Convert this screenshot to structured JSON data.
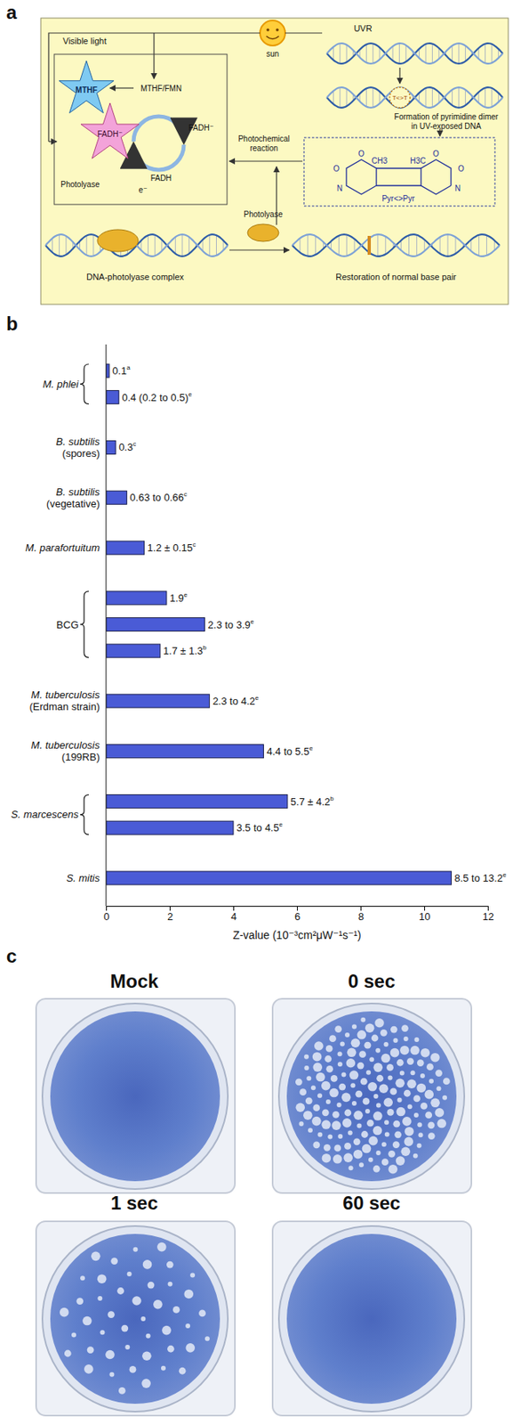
{
  "panel_labels": [
    "a",
    "b",
    "c"
  ],
  "diagram": {
    "sun": "sun",
    "visible_light": "Visible light",
    "uvr": "UVR",
    "dimer_formation": "Formation of pyrimidine dimer in UV-exposed DNA",
    "dimer": "T<>T",
    "mthf": "MTHF",
    "mthf_fmn": "MTHF/FMN",
    "fadh_star": "FADH⁻",
    "fadh_minus": "FADH⁻",
    "fadh": "FADH",
    "electron": "e⁻",
    "photolyase_inner": "Photolyase",
    "photochemical": "Photochemical reaction",
    "structure": {
      "ch3": "CH3",
      "h3c": "H3C",
      "o": "O",
      "n": "N",
      "pyr": "Pyr<>Pyr"
    },
    "photolyase": "Photolyase",
    "complex": "DNA-photolyase complex",
    "restoration": "Restoration of normal base pair"
  },
  "chart_data": {
    "type": "bar",
    "orientation": "horizontal",
    "categories": [
      "M. phlei",
      null,
      "B. subtilis (spores)",
      "B. subtilis (vegetative)",
      "M. parafortuitum",
      "BCG",
      null,
      null,
      "M. tuberculosis (Erdman strain)",
      "M. tuberculosis (199RB)",
      "S. marcescens",
      null,
      "S. mitis"
    ],
    "values": [
      0.1,
      0.4,
      0.3,
      0.65,
      1.2,
      1.9,
      3.1,
      1.7,
      3.25,
      4.95,
      5.7,
      4.0,
      10.85
    ],
    "value_labels": [
      "0.1",
      "0.4 (0.2 to 0.5)",
      "0.3",
      "0.63 to 0.66",
      "1.2 ± 0.15",
      "1.9",
      "2.3 to 3.9",
      "1.7 ± 1.3",
      "2.3 to 4.2",
      "4.4 to 5.5",
      "5.7 ± 4.2",
      "3.5 to 4.5",
      "8.5 to 13.2"
    ],
    "footnotes": [
      "a",
      "e",
      "c",
      "c",
      "c",
      "e",
      "e",
      "b",
      "e",
      "e",
      "b",
      "e",
      "e"
    ],
    "data_labels": true,
    "color": "#4a5bd6",
    "xlabel": "Z-value (10⁻³cm²μW⁻¹s⁻¹)",
    "xlim": [
      0,
      12
    ],
    "xticks": [
      0,
      2,
      4,
      6,
      8,
      10,
      12
    ]
  },
  "photos": {
    "labels": [
      "Mock",
      "0 sec",
      "1 sec",
      "60 sec"
    ],
    "plaques": [
      0,
      160,
      45,
      0
    ]
  }
}
